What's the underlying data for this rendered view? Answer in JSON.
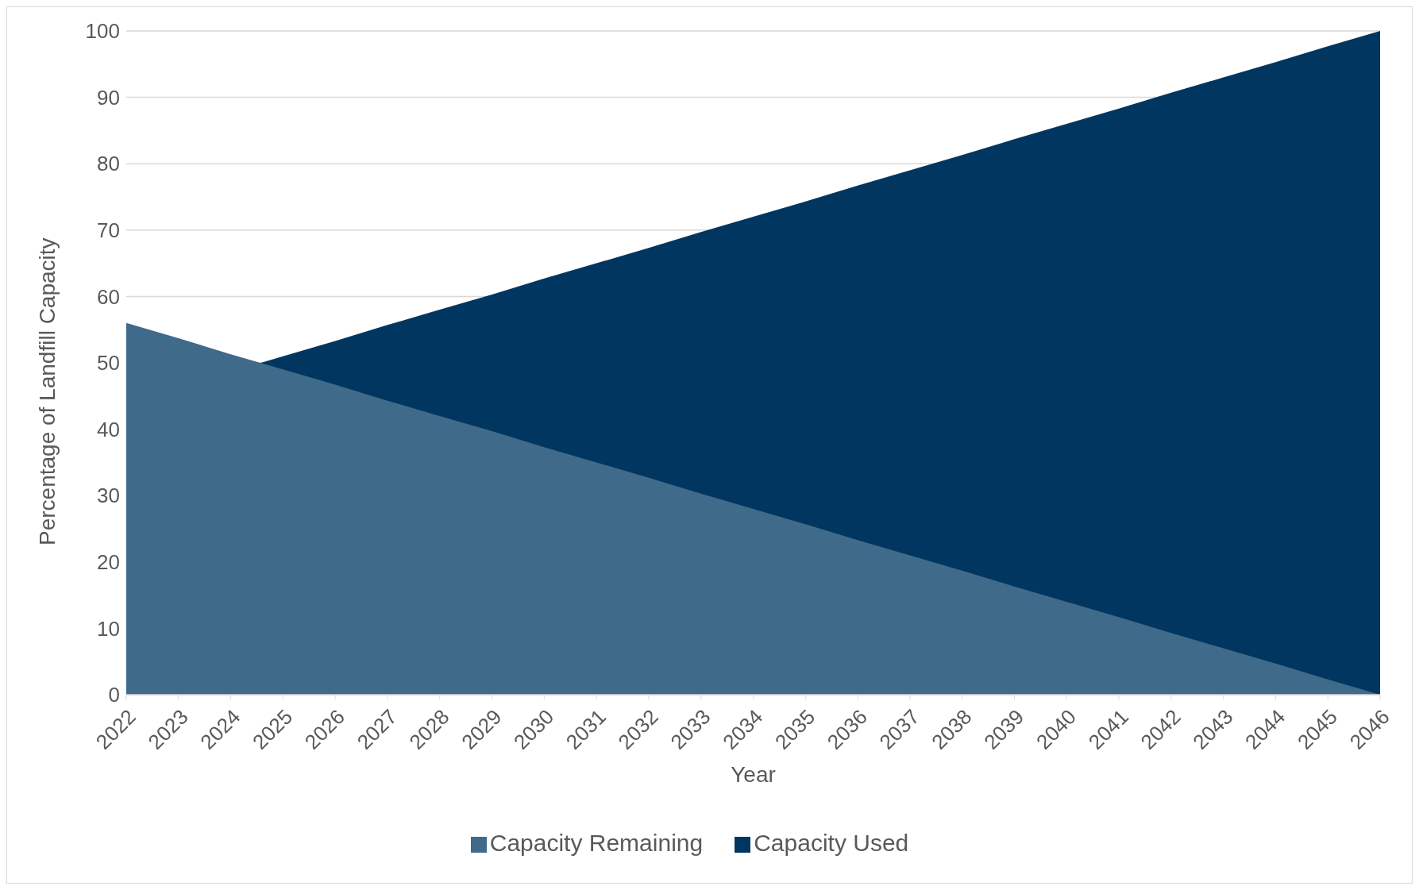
{
  "chart_data": {
    "type": "area",
    "xlabel": "Year",
    "ylabel": "Percentage of Landfill Capacity",
    "categories": [
      "2022",
      "2023",
      "2024",
      "2025",
      "2026",
      "2027",
      "2028",
      "2029",
      "2030",
      "2031",
      "2032",
      "2033",
      "2034",
      "2035",
      "2036",
      "2037",
      "2038",
      "2039",
      "2040",
      "2041",
      "2042",
      "2043",
      "2044",
      "2045",
      "2046"
    ],
    "series": [
      {
        "name": "Capacity Used",
        "color": "#003660",
        "values": [
          44,
          null,
          null,
          51,
          53.3,
          55.7,
          58,
          60.3,
          62.7,
          65,
          67.3,
          69.7,
          72,
          74.3,
          76.7,
          79,
          81.3,
          83.7,
          86,
          88.3,
          90.7,
          93,
          95.3,
          97.7,
          100
        ]
      },
      {
        "name": "Capacity Remaining",
        "color": "#3f6a8a",
        "values": [
          56,
          53.7,
          51.3,
          49,
          46.7,
          44.3,
          42,
          39.7,
          37.3,
          35,
          32.7,
          30.3,
          28,
          25.7,
          23.3,
          21,
          18.7,
          16.3,
          14,
          11.7,
          9.3,
          7,
          4.7,
          2.3,
          0
        ]
      }
    ],
    "ylim": [
      0,
      100
    ],
    "yticks": [
      0,
      10,
      20,
      30,
      40,
      50,
      60,
      70,
      80,
      90,
      100
    ],
    "grid": "y",
    "legend": "bottom"
  }
}
